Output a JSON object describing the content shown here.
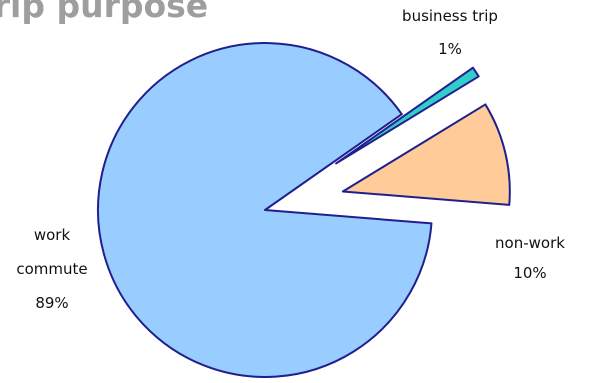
{
  "chart_data": {
    "type": "pie",
    "title": "trip purpose",
    "slices": [
      {
        "label": "business trip",
        "value": 1,
        "value_label": "1%",
        "color": "#33cccc",
        "exploded": true
      },
      {
        "label": "non-work",
        "value": 10,
        "value_label": "10%",
        "color": "#ffcc99",
        "exploded": true
      },
      {
        "label": "work commute",
        "label_lines": [
          "work",
          "commute"
        ],
        "value": 89,
        "value_label": "89%",
        "color": "#99ccff",
        "exploded": false
      }
    ],
    "outline_color": "#1f1f8f",
    "legend": "none"
  }
}
